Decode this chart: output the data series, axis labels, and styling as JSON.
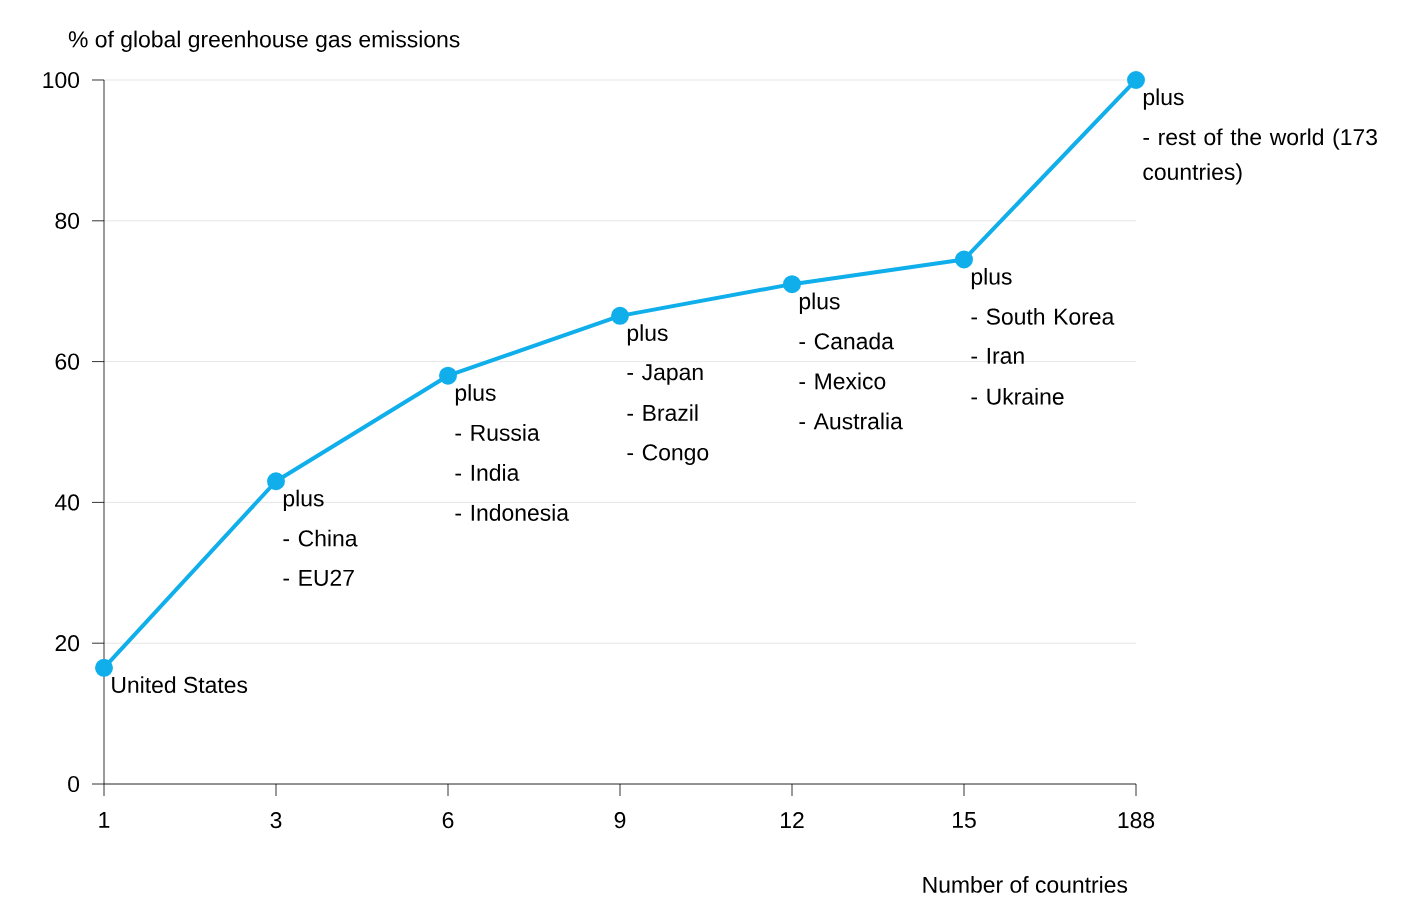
{
  "chart_data": {
    "type": "line",
    "ylabel": "% of global greenhouse gas emissions",
    "xlabel": "Number of countries",
    "categories": [
      "1",
      "3",
      "6",
      "9",
      "12",
      "15",
      "188"
    ],
    "values": [
      16.5,
      43,
      58,
      66.5,
      71,
      74.5,
      100
    ],
    "color": "#10aeea",
    "marker": "circle",
    "line_style": "solid",
    "grid": "y",
    "ylim": [
      0,
      100
    ],
    "yticks": [
      0,
      20,
      40,
      60,
      80,
      100
    ],
    "annotations": [
      {
        "text": "United States",
        "x": "1",
        "y": 16.5
      },
      {
        "text": "plus",
        "x": "3",
        "y": 43
      },
      "- China",
      "- EU27",
      {
        "text": "plus",
        "x": "6",
        "y": 58
      },
      "- Russia",
      "- India",
      "- Indonesia",
      {
        "text": "plus",
        "x": "9",
        "y": 66.5
      },
      "- Japan",
      "- Brazil",
      "- Congo",
      {
        "text": "plus",
        "x": "12",
        "y": 71
      },
      "- Canada",
      "- Mexico",
      "- Australia",
      {
        "text": "plus",
        "x": "15",
        "y": 74.5
      },
      "- South Korea",
      "- Iran",
      "- Ukraine",
      {
        "text": "plus",
        "x": "188",
        "y": 100
      },
      "- rest of the world (173 countries)"
    ]
  }
}
